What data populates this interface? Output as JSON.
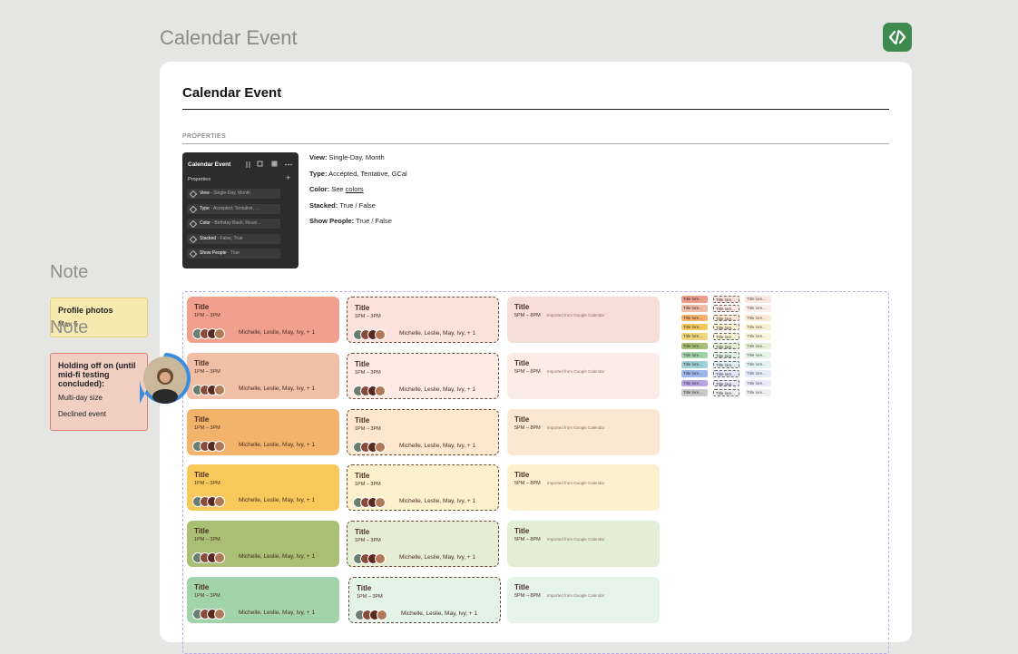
{
  "canvas_title": "Calendar Event",
  "notes": [
    {
      "label": "Note",
      "title": "Profile photos",
      "items": [
        "Max 5"
      ]
    },
    {
      "label": "Note",
      "title": "Holding off on (until mid-fi testing concluded):",
      "items": [
        "Multi-day size",
        "Declined event"
      ]
    }
  ],
  "card": {
    "title": "Calendar Event",
    "section": "PROPERTIES",
    "panel": {
      "title": "Calendar Event",
      "heading": "Properties",
      "props": [
        {
          "name": "View",
          "value": "Single-Day, Month"
        },
        {
          "name": "Type",
          "value": "Accepted, Tentative, ..."
        },
        {
          "name": "Color",
          "value": "Birthday Bash, Reuni..."
        },
        {
          "name": "Stacked",
          "value": "False, True"
        },
        {
          "name": "Show People",
          "value": "True"
        }
      ]
    },
    "properties": [
      {
        "name": "View:",
        "value": "Single-Day, Month"
      },
      {
        "name": "Type:",
        "value": "Accepted, Tentative, GCal"
      },
      {
        "name": "Color:",
        "value": "See",
        "link": "colors"
      },
      {
        "name": "Stacked:",
        "value": "True / False"
      },
      {
        "name": "Show People:",
        "value": "True / False"
      }
    ]
  },
  "events": {
    "rows": [
      [
        {
          "title": "Title",
          "time": "1PM – 3PM",
          "people": "Michelle, Leslie, May, Ivy, + 1"
        },
        {
          "title": "Title",
          "time": "1PM – 3PM",
          "people": "Michelle, Leslie, May, Ivy, + 1"
        },
        {
          "title": "Title",
          "time": "5PM – 8PM",
          "source": "Imported from Google Calendar"
        }
      ],
      [
        {
          "title": "Title",
          "time": "1PM – 3PM",
          "people": "Michelle, Leslie, May, Ivy, + 1"
        },
        {
          "title": "Title",
          "time": "1PM – 3PM",
          "people": "Michelle, Leslie, May, Ivy, + 1"
        },
        {
          "title": "Title",
          "time": "5PM – 8PM",
          "source": "Imported from Google Calendar"
        }
      ],
      [
        {
          "title": "Title",
          "time": "1PM – 3PM",
          "people": "Michelle, Leslie, May, Ivy, + 1"
        },
        {
          "title": "Title",
          "time": "1PM – 3PM",
          "people": "Michelle, Leslie, May, Ivy, + 1"
        },
        {
          "title": "Title",
          "time": "5PM – 8PM",
          "source": "Imported from Google Calendar"
        }
      ],
      [
        {
          "title": "Title",
          "time": "1PM – 3PM",
          "people": "Michelle, Leslie, May, Ivy, + 1"
        },
        {
          "title": "Title",
          "time": "1PM – 3PM",
          "people": "Michelle, Leslie, May, Ivy, + 1"
        },
        {
          "title": "Title",
          "time": "5PM – 8PM",
          "source": "Imported from Google Calendar"
        }
      ],
      [
        {
          "title": "Title",
          "time": "1PM – 3PM",
          "people": "Michelle, Leslie, May, Ivy, + 1"
        },
        {
          "title": "Title",
          "time": "1PM – 3PM",
          "people": "Michelle, Leslie, May, Ivy, + 1"
        },
        {
          "title": "Title",
          "time": "5PM – 8PM",
          "source": "Imported from Google Calendar"
        }
      ],
      [
        {
          "title": "Title",
          "time": "1PM – 3PM",
          "people": "Michelle, Leslie, May, Ivy, + 1"
        },
        {
          "title": "Title",
          "time": "1PM – 3PM",
          "people": "Michelle, Leslie, May, Ivy, + 1"
        },
        {
          "title": "Title",
          "time": "5PM – 8PM",
          "source": "Imported from Google Calendar"
        }
      ]
    ]
  },
  "mini": {
    "rows": [
      [
        "Title lore...",
        "Title lore...",
        "Title lore..."
      ],
      [
        "Title lore...",
        "Title lore...",
        "Title lore..."
      ],
      [
        "Title lore...",
        "Title lore...",
        "Title lore..."
      ],
      [
        "Title lore...",
        "Title lore...",
        "Title lore..."
      ],
      [
        "Title lore...",
        "Title lore...",
        "Title lore..."
      ],
      [
        "Title lore...",
        "Title lore...",
        "Title lore..."
      ],
      [
        "Title lore...",
        "Title lore...",
        "Title lore..."
      ],
      [
        "Title lore...",
        "Title lore...",
        "Title lore..."
      ],
      [
        "Title lore...",
        "Title lore...",
        "Title lore..."
      ],
      [
        "Title lore...",
        "Title lore...",
        "Title lore..."
      ],
      [
        "Title lore...",
        "Title lore...",
        "Title lore..."
      ]
    ]
  }
}
